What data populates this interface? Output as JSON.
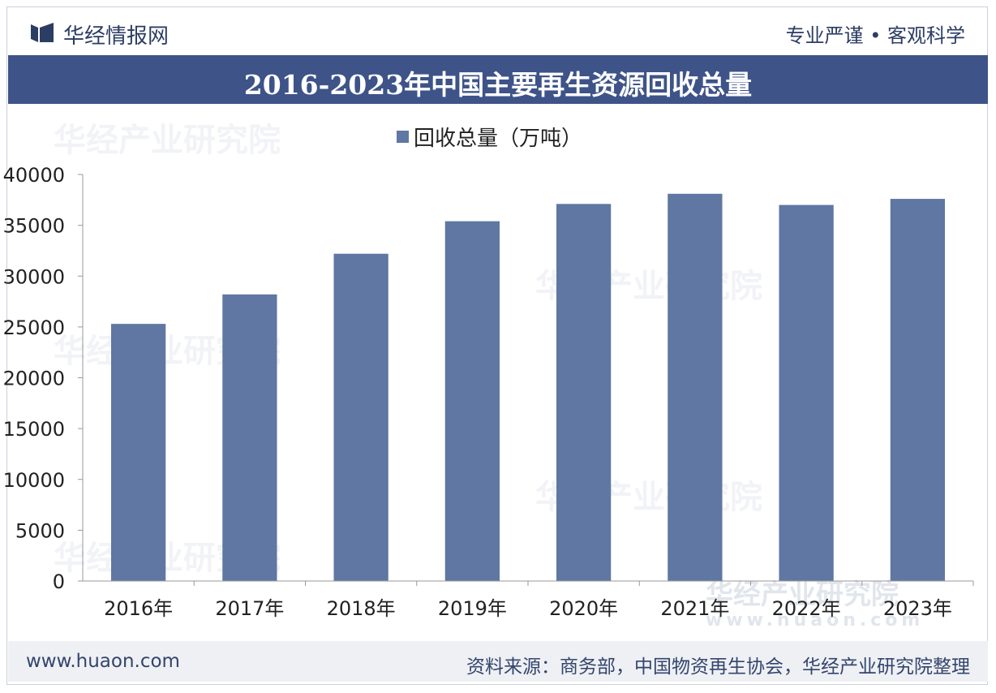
{
  "header": {
    "brand": "华经情报网",
    "tagline": "专业严谨 • 客观科学"
  },
  "title": "2016-2023年中国主要再生资源回收总量",
  "footer": {
    "url": "www.huaon.com",
    "source": "资料来源：商务部，中国物资再生协会，华经产业研究院整理"
  },
  "watermark": {
    "text": "华经产业研究院",
    "url": "www.huaon.com"
  },
  "colors": {
    "bar": "#5f77a2",
    "title_bg": "#3e5388",
    "text": "#2c3d63"
  },
  "chart_data": {
    "type": "bar",
    "title": "2016-2023年中国主要再生资源回收总量",
    "legend": "回收总量（万吨）",
    "legend_position": "top-center",
    "categories": [
      "2016年",
      "2017年",
      "2018年",
      "2019年",
      "2020年",
      "2021年",
      "2022年",
      "2023年"
    ],
    "series": [
      {
        "name": "回收总量（万吨）",
        "values": [
          25300,
          28200,
          32200,
          35400,
          37100,
          38100,
          37000,
          37600
        ]
      }
    ],
    "ylim": [
      0,
      40000
    ],
    "yticks": [
      "0",
      "5000",
      "10000",
      "15000",
      "20000",
      "25000",
      "30000",
      "35000",
      "40000"
    ],
    "ytick_values": [
      0,
      5000,
      10000,
      15000,
      20000,
      25000,
      30000,
      35000,
      40000
    ],
    "grid": false,
    "xlabel": "",
    "ylabel": ""
  }
}
